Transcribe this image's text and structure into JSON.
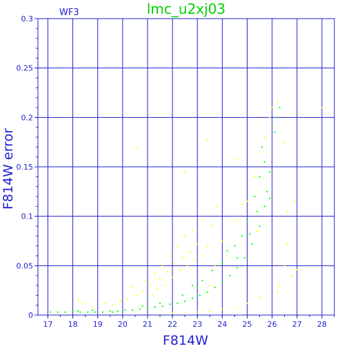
{
  "chart_data": {
    "type": "scatter",
    "title": "lmc_u2xj03",
    "panel_label": "WF3",
    "xlabel": "F814W",
    "ylabel": "F814W error",
    "xlim": [
      16.6,
      28.5
    ],
    "ylim": [
      0,
      0.3
    ],
    "x_ticks": [
      "17",
      "18",
      "19",
      "20",
      "21",
      "22",
      "23",
      "24",
      "25",
      "26",
      "27",
      "28"
    ],
    "y_ticks": [
      "0",
      "0.05",
      "0.1",
      "0.15",
      "0.2",
      "0.25",
      "0.3"
    ],
    "grid": true,
    "series": [
      {
        "color": "#ffff00",
        "points": [
          [
            18.2,
            0.016
          ],
          [
            18.5,
            0.012
          ],
          [
            18.8,
            0.008
          ],
          [
            19.3,
            0.012
          ],
          [
            19.6,
            0.01
          ],
          [
            19.9,
            0.014
          ],
          [
            20.2,
            0.016
          ],
          [
            20.4,
            0.028
          ],
          [
            20.6,
            0.02
          ],
          [
            20.8,
            0.024
          ],
          [
            20.9,
            0.034
          ],
          [
            21.1,
            0.03
          ],
          [
            21.2,
            0.02
          ],
          [
            21.3,
            0.042
          ],
          [
            21.4,
            0.026
          ],
          [
            21.5,
            0.036
          ],
          [
            21.6,
            0.05
          ],
          [
            21.7,
            0.03
          ],
          [
            21.8,
            0.044
          ],
          [
            21.9,
            0.06
          ],
          [
            22.0,
            0.038
          ],
          [
            22.1,
            0.052
          ],
          [
            22.2,
            0.07
          ],
          [
            22.3,
            0.046
          ],
          [
            22.4,
            0.058
          ],
          [
            22.5,
            0.08
          ],
          [
            22.6,
            0.05
          ],
          [
            22.7,
            0.064
          ],
          [
            22.8,
            0.086
          ],
          [
            22.9,
            0.056
          ],
          [
            23.0,
            0.072
          ],
          [
            23.1,
            0.096
          ],
          [
            23.2,
            0.06
          ],
          [
            23.4,
            0.07
          ],
          [
            23.5,
            0.03
          ],
          [
            23.6,
            0.09
          ],
          [
            23.7,
            0.05
          ],
          [
            23.8,
            0.11
          ],
          [
            24.0,
            0.075
          ],
          [
            24.2,
            0.06
          ],
          [
            24.6,
            0.095
          ],
          [
            25.0,
            0.115
          ],
          [
            25.3,
            0.14
          ],
          [
            25.5,
            0.165
          ],
          [
            25.7,
            0.18
          ],
          [
            25.9,
            0.2
          ],
          [
            26.0,
            0.21
          ],
          [
            26.2,
            0.215
          ],
          [
            22.0,
            0.002
          ],
          [
            22.5,
            0.002
          ],
          [
            23.0,
            0.003
          ],
          [
            23.5,
            0.004
          ],
          [
            24.0,
            0.006
          ],
          [
            24.5,
            0.008
          ],
          [
            25.0,
            0.012
          ],
          [
            25.5,
            0.018
          ],
          [
            26.2,
            0.024
          ],
          [
            26.8,
            0.04
          ],
          [
            27.0,
            0.046
          ],
          [
            26.5,
            0.05
          ],
          [
            26.6,
            0.072
          ],
          [
            26.3,
            0.03
          ],
          [
            26.9,
            0.115
          ],
          [
            26.6,
            0.105
          ],
          [
            22.5,
            0.145
          ],
          [
            20.6,
            0.17
          ],
          [
            23.4,
            0.177
          ],
          [
            24.6,
            0.158
          ],
          [
            26.5,
            0.175
          ],
          [
            28.0,
            0.21
          ],
          [
            24.8,
            0.112
          ],
          [
            25.4,
            0.085
          ]
        ]
      },
      {
        "color": "#00ff00",
        "points": [
          [
            17.1,
            0.003
          ],
          [
            17.4,
            0.003
          ],
          [
            17.7,
            0.003
          ],
          [
            18.0,
            0.004
          ],
          [
            18.3,
            0.003
          ],
          [
            18.6,
            0.003
          ],
          [
            18.9,
            0.003
          ],
          [
            19.2,
            0.003
          ],
          [
            19.5,
            0.004
          ],
          [
            19.8,
            0.004
          ],
          [
            20.1,
            0.005
          ],
          [
            20.4,
            0.005
          ],
          [
            20.7,
            0.006
          ],
          [
            21.0,
            0.007
          ],
          [
            21.3,
            0.008
          ],
          [
            21.6,
            0.009
          ],
          [
            21.9,
            0.011
          ],
          [
            22.2,
            0.012
          ],
          [
            22.5,
            0.014
          ],
          [
            22.8,
            0.017
          ],
          [
            23.1,
            0.02
          ],
          [
            23.4,
            0.023
          ],
          [
            23.7,
            0.028
          ],
          [
            24.0,
            0.033
          ],
          [
            24.3,
            0.04
          ],
          [
            24.6,
            0.048
          ],
          [
            24.9,
            0.058
          ],
          [
            25.2,
            0.072
          ],
          [
            25.5,
            0.09
          ],
          [
            25.7,
            0.11
          ],
          [
            25.8,
            0.125
          ],
          [
            25.9,
            0.145
          ],
          [
            26.0,
            0.165
          ],
          [
            26.1,
            0.185
          ],
          [
            26.2,
            0.2
          ],
          [
            26.3,
            0.21
          ],
          [
            22.4,
            0.02
          ],
          [
            22.8,
            0.03
          ],
          [
            23.2,
            0.035
          ],
          [
            23.6,
            0.045
          ],
          [
            24.0,
            0.052
          ],
          [
            24.2,
            0.065
          ],
          [
            24.5,
            0.07
          ],
          [
            24.8,
            0.08
          ],
          [
            25.0,
            0.095
          ],
          [
            25.3,
            0.12
          ],
          [
            25.5,
            0.14
          ],
          [
            25.6,
            0.17
          ],
          [
            18.2,
            0.004
          ],
          [
            18.8,
            0.005
          ],
          [
            19.6,
            0.003
          ],
          [
            20.8,
            0.009
          ],
          [
            21.5,
            0.012
          ],
          [
            23.0,
            0.028
          ],
          [
            24.6,
            0.058
          ],
          [
            25.1,
            0.082
          ],
          [
            25.4,
            0.105
          ],
          [
            25.7,
            0.155
          ],
          [
            26.0,
            0.19
          ],
          [
            25.9,
            0.118
          ]
        ]
      }
    ]
  }
}
